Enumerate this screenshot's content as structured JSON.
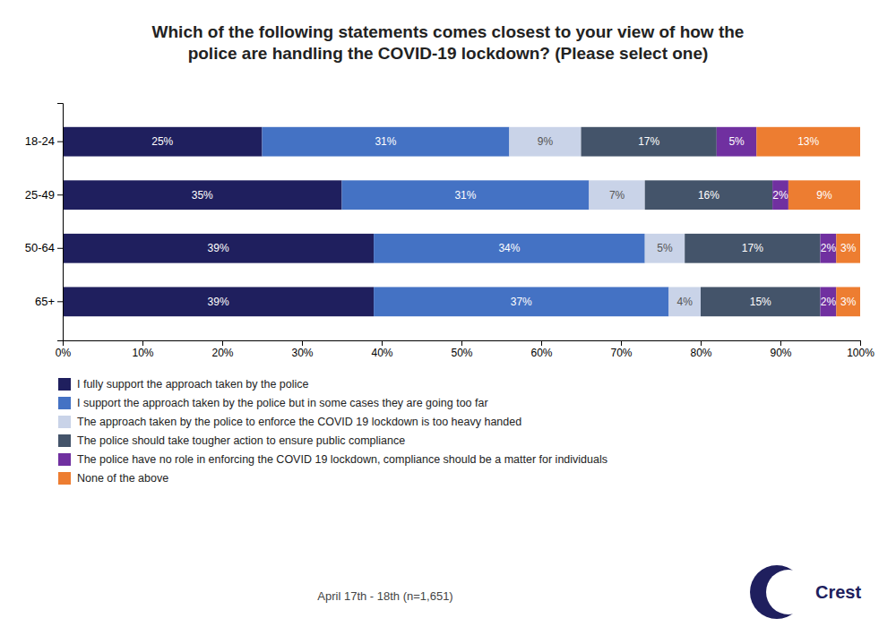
{
  "chart_data": {
    "type": "bar",
    "orientation": "horizontal",
    "stacked": true,
    "title": "Which of the following statements comes closest to your view of how the\npolice are handling the COVID-19 lockdown? (Please select one)",
    "categories": [
      "18-24",
      "25-49",
      "50-64",
      "65+"
    ],
    "series": [
      {
        "name": "I fully support the approach taken by the police",
        "color": "#1f1f5e",
        "values": [
          25,
          35,
          39,
          39
        ],
        "value_labels": [
          "25%",
          "35%",
          "39%",
          "39%"
        ]
      },
      {
        "name": "I support the approach taken by the police but in some cases they are going too far",
        "color": "#4472c4",
        "values": [
          31,
          31,
          34,
          37
        ],
        "value_labels": [
          "31%",
          "31%",
          "34%",
          "37%"
        ]
      },
      {
        "name": "The approach taken by the police to enforce the COVID 19 lockdown is too heavy handed",
        "color": "#c9d3e8",
        "values": [
          9,
          7,
          5,
          4
        ],
        "value_labels": [
          "9%",
          "7%",
          "5%",
          "4%"
        ]
      },
      {
        "name": "The police should take tougher action to ensure public compliance",
        "color": "#44546a",
        "values": [
          17,
          16,
          17,
          15
        ],
        "value_labels": [
          "17%",
          "16%",
          "17%",
          "15%"
        ]
      },
      {
        "name": "The police have no role in enforcing the COVID 19 lockdown, compliance should be a matter for individuals",
        "color": "#7030a0",
        "values": [
          5,
          2,
          2,
          2
        ],
        "value_labels": [
          "5%",
          "2%",
          "2%",
          "2%"
        ]
      },
      {
        "name": "None of the above",
        "color": "#ed7d31",
        "values": [
          13,
          9,
          3,
          3
        ],
        "value_labels": [
          "13%",
          "9%",
          "3%",
          "3%"
        ]
      }
    ],
    "xlim": [
      0,
      100
    ],
    "xticks": [
      {
        "value": 0,
        "label": "0%"
      },
      {
        "value": 10,
        "label": "10%"
      },
      {
        "value": 20,
        "label": "20%"
      },
      {
        "value": 30,
        "label": "30%"
      },
      {
        "value": 40,
        "label": "40%"
      },
      {
        "value": 50,
        "label": "50%"
      },
      {
        "value": 60,
        "label": "60%"
      },
      {
        "value": 70,
        "label": "70%"
      },
      {
        "value": 80,
        "label": "80%"
      },
      {
        "value": 90,
        "label": "90%"
      },
      {
        "value": 100,
        "label": "100%"
      }
    ],
    "data_labels": true,
    "grid": false,
    "legend": "bottom",
    "footnote": "April 17th - 18th (n=1,651)",
    "annotations": [
      "Crest"
    ]
  }
}
